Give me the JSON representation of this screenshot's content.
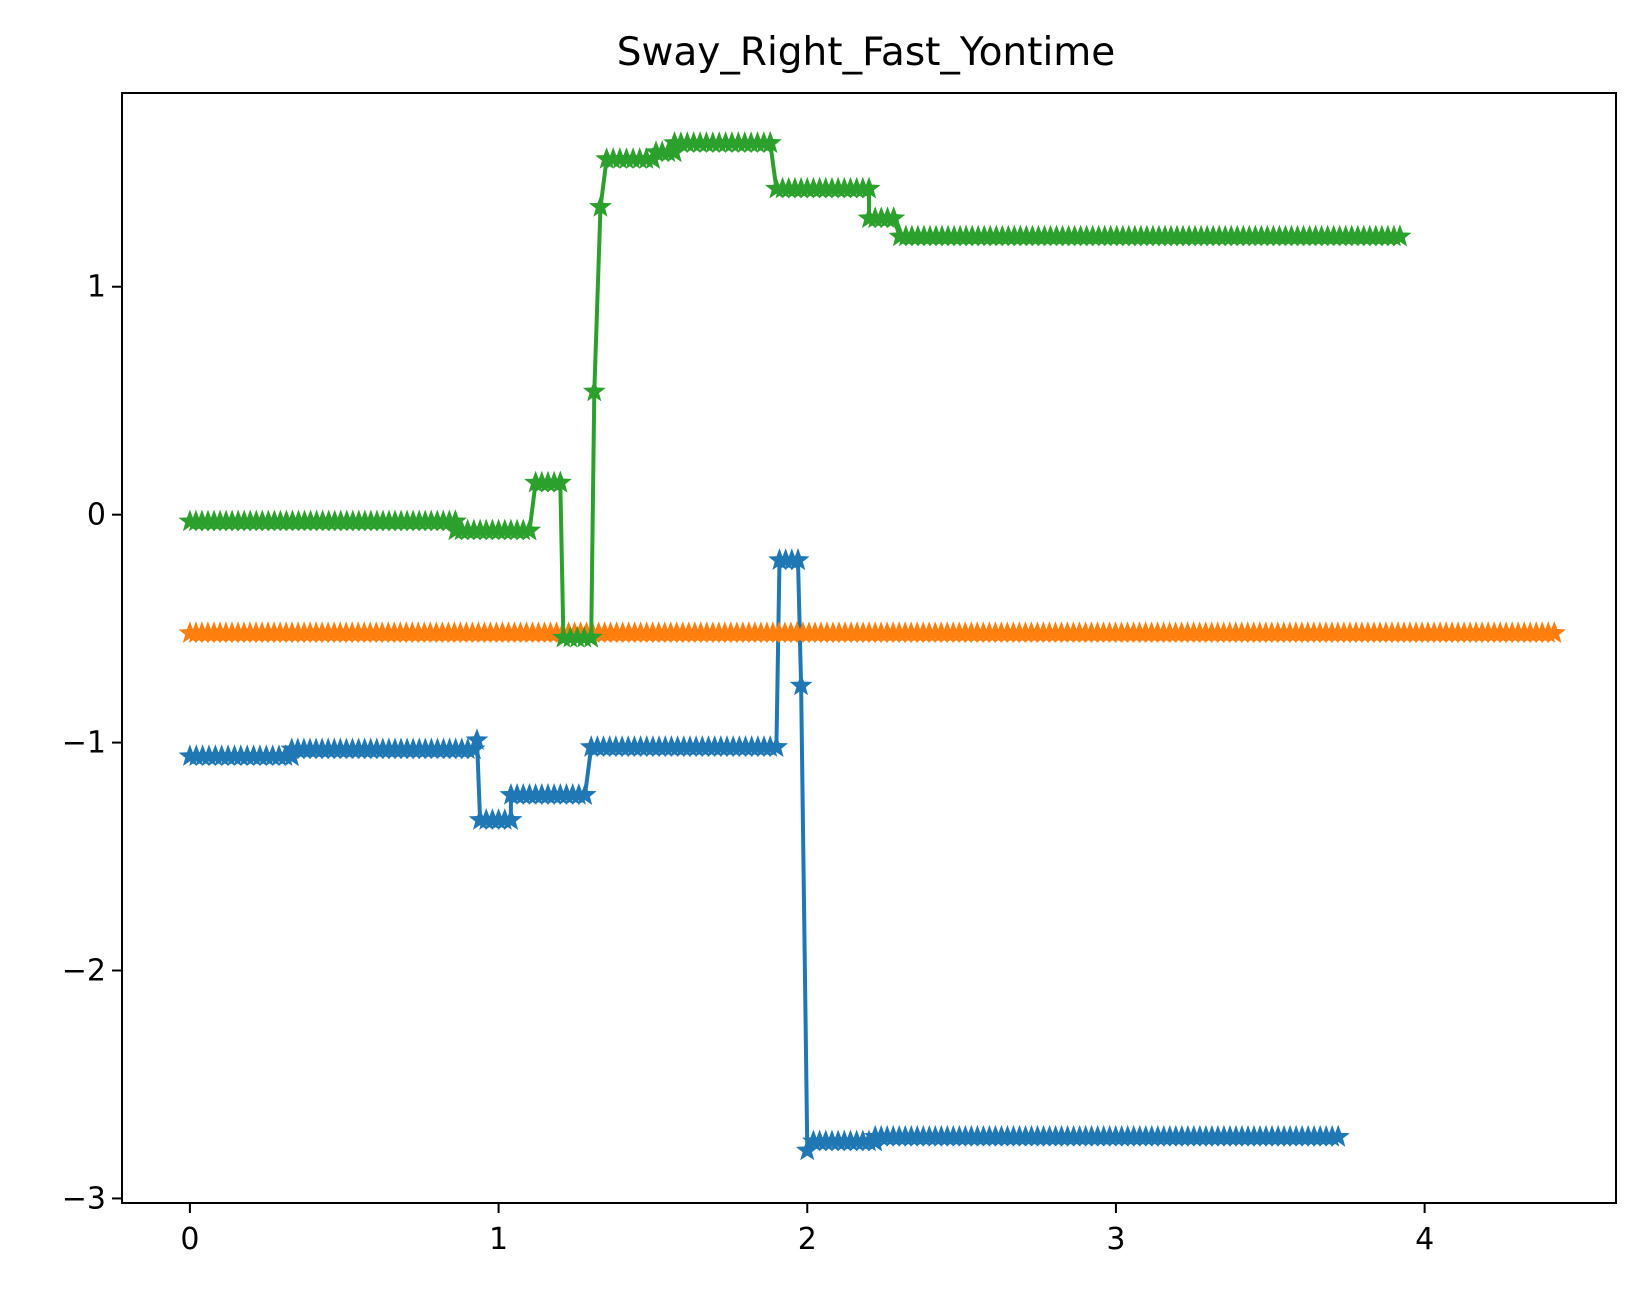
{
  "chart_data": {
    "type": "line",
    "title": "Sway_Right_Fast_Yontime",
    "xlabel": "",
    "ylabel": "",
    "xlim": [
      -0.22,
      4.62
    ],
    "ylim": [
      -3.02,
      1.85
    ],
    "x_ticks": [
      0,
      1,
      2,
      3,
      4
    ],
    "y_ticks": [
      -3,
      -2,
      -1,
      0,
      1
    ],
    "x_tick_labels": [
      "0",
      "1",
      "2",
      "3",
      "4"
    ],
    "y_tick_labels": [
      "−3",
      "−2",
      "−1",
      "0",
      "1"
    ],
    "grid": false,
    "marker": "star",
    "series": [
      {
        "color": "#1f77b4",
        "points": [
          [
            0.0,
            -1.06
          ],
          [
            0.33,
            -1.06
          ],
          [
            0.33,
            -1.03
          ],
          [
            0.92,
            -1.03
          ],
          [
            0.93,
            -0.99
          ],
          [
            0.94,
            -1.34
          ],
          [
            1.04,
            -1.34
          ],
          [
            1.04,
            -1.23
          ],
          [
            1.28,
            -1.23
          ],
          [
            1.3,
            -1.02
          ],
          [
            1.9,
            -1.02
          ],
          [
            1.91,
            -0.2
          ],
          [
            1.97,
            -0.2
          ],
          [
            1.98,
            -0.75
          ],
          [
            2.0,
            -2.79
          ],
          [
            2.02,
            -2.75
          ],
          [
            2.22,
            -2.75
          ],
          [
            2.22,
            -2.73
          ],
          [
            3.72,
            -2.73
          ]
        ]
      },
      {
        "color": "#ff7f0e",
        "points": [
          [
            0.0,
            -0.52
          ],
          [
            4.42,
            -0.52
          ]
        ]
      },
      {
        "color": "#2ca02c",
        "points": [
          [
            0.0,
            -0.03
          ],
          [
            0.86,
            -0.03
          ],
          [
            0.86,
            -0.07
          ],
          [
            1.1,
            -0.07
          ],
          [
            1.12,
            0.14
          ],
          [
            1.2,
            0.14
          ],
          [
            1.21,
            -0.54
          ],
          [
            1.3,
            -0.54
          ],
          [
            1.31,
            0.54
          ],
          [
            1.33,
            1.35
          ],
          [
            1.35,
            1.56
          ],
          [
            1.5,
            1.56
          ],
          [
            1.51,
            1.59
          ],
          [
            1.57,
            1.59
          ],
          [
            1.57,
            1.63
          ],
          [
            1.88,
            1.63
          ],
          [
            1.9,
            1.43
          ],
          [
            2.2,
            1.43
          ],
          [
            2.2,
            1.3
          ],
          [
            2.28,
            1.3
          ],
          [
            2.3,
            1.22
          ],
          [
            3.92,
            1.22
          ]
        ]
      }
    ]
  }
}
